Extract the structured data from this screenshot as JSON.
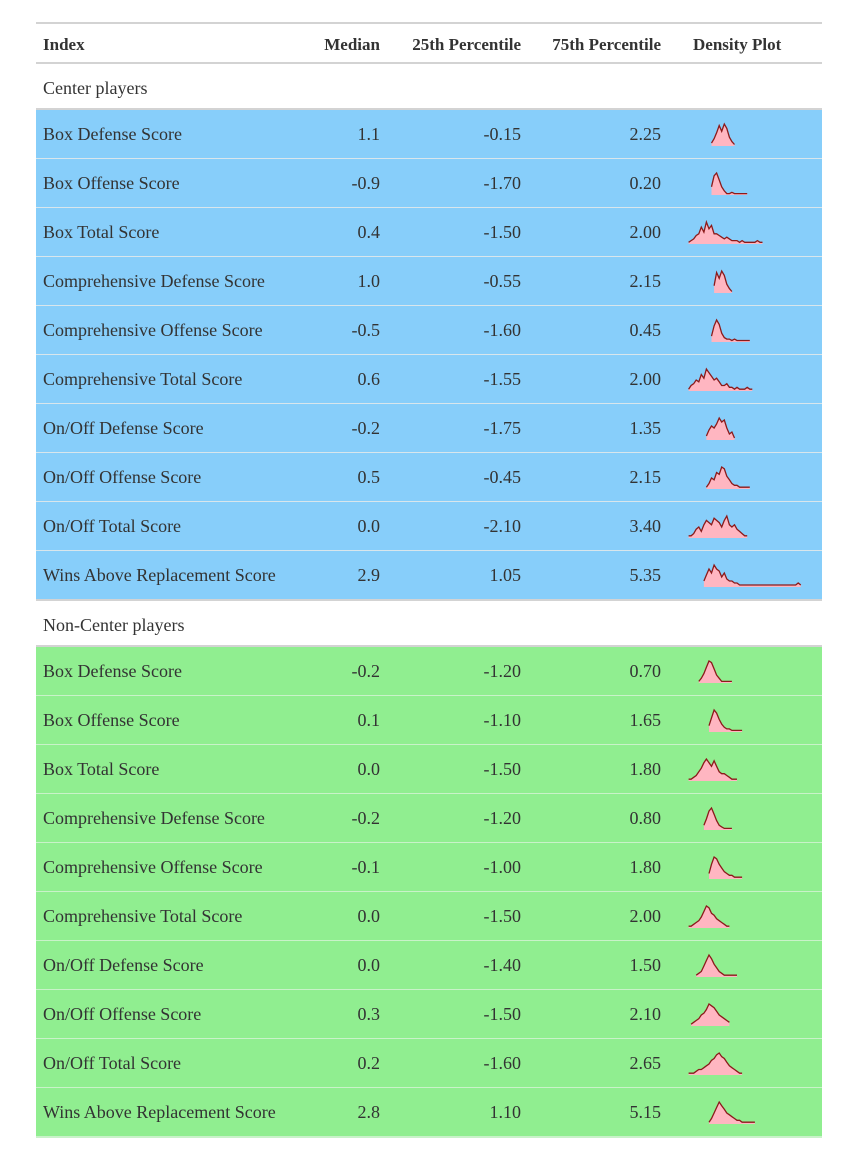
{
  "headers": {
    "index": "Index",
    "median": "Median",
    "p25": "25th Percentile",
    "p75": "75th Percentile",
    "density": "Density Plot"
  },
  "groups": [
    {
      "label": "Center players",
      "color": "#87cefa",
      "rows": [
        {
          "index": "Box Defense Score",
          "median": "1.1",
          "p25": "-0.15",
          "p75": "2.25",
          "density": [
            0,
            0,
            0,
            0,
            0,
            0,
            0,
            0,
            0,
            0,
            2,
            5,
            9,
            14,
            10,
            15,
            12,
            6,
            3,
            1,
            0,
            0,
            0,
            0,
            0,
            0,
            0,
            0,
            0,
            0,
            0,
            0,
            0,
            0,
            0,
            0,
            0,
            0,
            0,
            0,
            0,
            0,
            0,
            0,
            0,
            0,
            0,
            0,
            0,
            0
          ]
        },
        {
          "index": "Box Offense Score",
          "median": "-0.9",
          "p25": "-1.70",
          "p75": "0.20",
          "density": [
            0,
            0,
            0,
            0,
            0,
            0,
            0,
            0,
            0,
            0,
            6,
            14,
            16,
            11,
            6,
            3,
            1,
            1,
            2,
            1,
            1,
            1,
            1,
            1,
            1,
            0,
            0,
            0,
            0,
            0,
            0,
            0,
            0,
            0,
            0,
            0,
            0,
            0,
            0,
            0,
            0,
            0,
            0,
            0,
            0,
            0,
            0,
            0,
            0,
            0
          ]
        },
        {
          "index": "Box Total Score",
          "median": "0.4",
          "p25": "-1.50",
          "p75": "2.00",
          "density": [
            0,
            1,
            2,
            3,
            5,
            6,
            10,
            7,
            13,
            9,
            11,
            6,
            6,
            5,
            4,
            3,
            4,
            3,
            2,
            2,
            2,
            1,
            2,
            1,
            1,
            1,
            1,
            1,
            2,
            1,
            1,
            0,
            0,
            0,
            0,
            0,
            0,
            0,
            0,
            0,
            0,
            0,
            0,
            0,
            0,
            0,
            0,
            0,
            0,
            0
          ]
        },
        {
          "index": "Comprehensive Defense Score",
          "median": "1.0",
          "p25": "-0.55",
          "p75": "2.15",
          "density": [
            0,
            0,
            0,
            0,
            0,
            0,
            0,
            0,
            0,
            0,
            0,
            5,
            14,
            10,
            15,
            12,
            6,
            3,
            1,
            0,
            0,
            0,
            0,
            0,
            0,
            0,
            0,
            0,
            0,
            0,
            0,
            0,
            0,
            0,
            0,
            0,
            0,
            0,
            0,
            0,
            0,
            0,
            0,
            0,
            0,
            0,
            0,
            0,
            0,
            0
          ]
        },
        {
          "index": "Comprehensive Offense Score",
          "median": "-0.5",
          "p25": "-1.60",
          "p75": "0.45",
          "density": [
            0,
            0,
            0,
            0,
            0,
            0,
            0,
            0,
            0,
            0,
            4,
            11,
            15,
            12,
            6,
            3,
            2,
            2,
            1,
            2,
            1,
            1,
            1,
            1,
            1,
            1,
            0,
            0,
            0,
            0,
            0,
            0,
            0,
            0,
            0,
            0,
            0,
            0,
            0,
            0,
            0,
            0,
            0,
            0,
            0,
            0,
            0,
            0,
            0,
            0
          ]
        },
        {
          "index": "Comprehensive Total Score",
          "median": "0.6",
          "p25": "-1.55",
          "p75": "2.00",
          "density": [
            0,
            1,
            3,
            4,
            6,
            5,
            9,
            7,
            12,
            10,
            8,
            6,
            7,
            5,
            3,
            3,
            4,
            2,
            2,
            1,
            2,
            1,
            1,
            1,
            2,
            1,
            1,
            0,
            0,
            0,
            0,
            0,
            0,
            0,
            0,
            0,
            0,
            0,
            0,
            0,
            0,
            0,
            0,
            0,
            0,
            0,
            0,
            0,
            0,
            0
          ]
        },
        {
          "index": "On/Off Defense Score",
          "median": "-0.2",
          "p25": "-1.75",
          "p75": "1.35",
          "density": [
            0,
            0,
            0,
            0,
            0,
            0,
            0,
            0,
            2,
            5,
            7,
            6,
            8,
            11,
            9,
            10,
            6,
            3,
            4,
            1,
            0,
            0,
            0,
            0,
            0,
            0,
            0,
            0,
            0,
            0,
            0,
            0,
            0,
            0,
            0,
            0,
            0,
            0,
            0,
            0,
            0,
            0,
            0,
            0,
            0,
            0,
            0,
            0,
            0,
            0
          ]
        },
        {
          "index": "On/Off Offense Score",
          "median": "0.5",
          "p25": "-0.45",
          "p75": "2.15",
          "density": [
            0,
            0,
            0,
            0,
            0,
            0,
            0,
            0,
            1,
            3,
            6,
            5,
            9,
            8,
            12,
            11,
            7,
            5,
            3,
            2,
            2,
            1,
            1,
            1,
            1,
            1,
            0,
            0,
            0,
            0,
            0,
            0,
            0,
            0,
            0,
            0,
            0,
            0,
            0,
            0,
            0,
            0,
            0,
            0,
            0,
            0,
            0,
            0,
            0,
            0
          ]
        },
        {
          "index": "On/Off Total Score",
          "median": "0.0",
          "p25": "-2.10",
          "p75": "3.40",
          "density": [
            0,
            1,
            1,
            2,
            4,
            5,
            3,
            6,
            8,
            7,
            6,
            9,
            8,
            7,
            5,
            8,
            10,
            6,
            5,
            6,
            4,
            3,
            2,
            1,
            1,
            0,
            0,
            0,
            0,
            0,
            0,
            0,
            0,
            0,
            0,
            0,
            0,
            0,
            0,
            0,
            0,
            0,
            0,
            0,
            0,
            0,
            0,
            0,
            0,
            0
          ]
        },
        {
          "index": "Wins Above Replacement Score",
          "median": "2.9",
          "p25": "1.05",
          "p75": "5.35",
          "density": [
            0,
            0,
            0,
            0,
            0,
            0,
            0,
            3,
            6,
            9,
            7,
            11,
            9,
            8,
            5,
            7,
            4,
            3,
            3,
            2,
            2,
            1,
            1,
            1,
            1,
            1,
            1,
            1,
            1,
            1,
            1,
            1,
            1,
            1,
            1,
            1,
            1,
            1,
            1,
            1,
            1,
            1,
            1,
            1,
            2,
            1,
            0,
            0,
            0,
            0
          ]
        }
      ]
    },
    {
      "label": "Non-Center players",
      "color": "#90ee90",
      "rows": [
        {
          "index": "Box Defense Score",
          "median": "-0.2",
          "p25": "-1.20",
          "p75": "0.70",
          "density": [
            0,
            0,
            0,
            0,
            0,
            1,
            3,
            6,
            10,
            14,
            13,
            9,
            5,
            3,
            1,
            1,
            1,
            1,
            1,
            0,
            0,
            0,
            0,
            0,
            0,
            0,
            0,
            0,
            0,
            0,
            0,
            0,
            0,
            0,
            0,
            0,
            0,
            0,
            0,
            0,
            0,
            0,
            0,
            0,
            0,
            0,
            0,
            0,
            0,
            0
          ]
        },
        {
          "index": "Box Offense Score",
          "median": "0.1",
          "p25": "-1.10",
          "p75": "1.65",
          "density": [
            0,
            0,
            0,
            0,
            0,
            0,
            0,
            0,
            0,
            4,
            9,
            14,
            12,
            8,
            5,
            3,
            2,
            2,
            1,
            1,
            1,
            1,
            1,
            0,
            0,
            0,
            0,
            0,
            0,
            0,
            0,
            0,
            0,
            0,
            0,
            0,
            0,
            0,
            0,
            0,
            0,
            0,
            0,
            0,
            0,
            0,
            0,
            0,
            0,
            0
          ]
        },
        {
          "index": "Box Total Score",
          "median": "0.0",
          "p25": "-1.50",
          "p75": "1.80",
          "density": [
            0,
            1,
            1,
            2,
            3,
            5,
            7,
            10,
            12,
            10,
            8,
            11,
            8,
            5,
            4,
            4,
            3,
            2,
            1,
            1,
            1,
            0,
            0,
            0,
            0,
            0,
            0,
            0,
            0,
            0,
            0,
            0,
            0,
            0,
            0,
            0,
            0,
            0,
            0,
            0,
            0,
            0,
            0,
            0,
            0,
            0,
            0,
            0,
            0,
            0
          ]
        },
        {
          "index": "Comprehensive Defense Score",
          "median": "-0.2",
          "p25": "-1.20",
          "p75": "0.80",
          "density": [
            0,
            0,
            0,
            0,
            0,
            0,
            0,
            3,
            7,
            12,
            14,
            10,
            6,
            3,
            2,
            1,
            1,
            1,
            1,
            0,
            0,
            0,
            0,
            0,
            0,
            0,
            0,
            0,
            0,
            0,
            0,
            0,
            0,
            0,
            0,
            0,
            0,
            0,
            0,
            0,
            0,
            0,
            0,
            0,
            0,
            0,
            0,
            0,
            0,
            0
          ]
        },
        {
          "index": "Comprehensive Offense Score",
          "median": "-0.1",
          "p25": "-1.00",
          "p75": "1.80",
          "density": [
            0,
            0,
            0,
            0,
            0,
            0,
            0,
            0,
            0,
            3,
            8,
            12,
            11,
            8,
            6,
            4,
            3,
            2,
            2,
            1,
            1,
            1,
            1,
            0,
            0,
            0,
            0,
            0,
            0,
            0,
            0,
            0,
            0,
            0,
            0,
            0,
            0,
            0,
            0,
            0,
            0,
            0,
            0,
            0,
            0,
            0,
            0,
            0,
            0,
            0
          ]
        },
        {
          "index": "Comprehensive Total Score",
          "median": "0.0",
          "p25": "-1.50",
          "p75": "2.00",
          "density": [
            0,
            1,
            1,
            2,
            3,
            4,
            6,
            9,
            12,
            11,
            8,
            7,
            5,
            4,
            3,
            2,
            1,
            1,
            0,
            0,
            0,
            0,
            0,
            0,
            0,
            0,
            0,
            0,
            0,
            0,
            0,
            0,
            0,
            0,
            0,
            0,
            0,
            0,
            0,
            0,
            0,
            0,
            0,
            0,
            0,
            0,
            0,
            0,
            0,
            0
          ]
        },
        {
          "index": "On/Off Defense Score",
          "median": "0.0",
          "p25": "-1.40",
          "p75": "1.50",
          "density": [
            0,
            0,
            0,
            0,
            1,
            2,
            3,
            6,
            9,
            12,
            10,
            7,
            5,
            3,
            2,
            1,
            1,
            1,
            1,
            1,
            1,
            0,
            0,
            0,
            0,
            0,
            0,
            0,
            0,
            0,
            0,
            0,
            0,
            0,
            0,
            0,
            0,
            0,
            0,
            0,
            0,
            0,
            0,
            0,
            0,
            0,
            0,
            0,
            0,
            0
          ]
        },
        {
          "index": "On/Off Offense Score",
          "median": "0.3",
          "p25": "-1.50",
          "p75": "2.10",
          "density": [
            0,
            0,
            1,
            2,
            3,
            4,
            6,
            7,
            9,
            12,
            11,
            10,
            8,
            6,
            5,
            4,
            3,
            2,
            0,
            0,
            0,
            0,
            0,
            0,
            0,
            0,
            0,
            0,
            0,
            0,
            0,
            0,
            0,
            0,
            0,
            0,
            0,
            0,
            0,
            0,
            0,
            0,
            0,
            0,
            0,
            0,
            0,
            0,
            0,
            0
          ]
        },
        {
          "index": "On/Off Total Score",
          "median": "0.2",
          "p25": "-1.60",
          "p75": "2.65",
          "density": [
            0,
            1,
            1,
            1,
            2,
            3,
            3,
            4,
            5,
            6,
            8,
            9,
            11,
            12,
            10,
            9,
            7,
            5,
            4,
            3,
            2,
            1,
            1,
            0,
            0,
            0,
            0,
            0,
            0,
            0,
            0,
            0,
            0,
            0,
            0,
            0,
            0,
            0,
            0,
            0,
            0,
            0,
            0,
            0,
            0,
            0,
            0,
            0,
            0,
            0
          ]
        },
        {
          "index": "Wins Above Replacement Score",
          "median": "2.8",
          "p25": "1.10",
          "p75": "5.15",
          "density": [
            0,
            0,
            0,
            0,
            0,
            0,
            0,
            0,
            0,
            1,
            3,
            6,
            9,
            12,
            10,
            8,
            6,
            5,
            4,
            3,
            2,
            2,
            1,
            1,
            1,
            1,
            1,
            1,
            0,
            0,
            0,
            0,
            0,
            0,
            0,
            0,
            0,
            0,
            0,
            0,
            0,
            0,
            0,
            0,
            0,
            0,
            0,
            0,
            0,
            0
          ]
        }
      ]
    }
  ],
  "colors": {
    "center_row_bg": "#87cefa",
    "non_center_row_bg": "#90ee90",
    "density_fill": "#ffb6c1",
    "density_line": "#8b1a1a"
  }
}
